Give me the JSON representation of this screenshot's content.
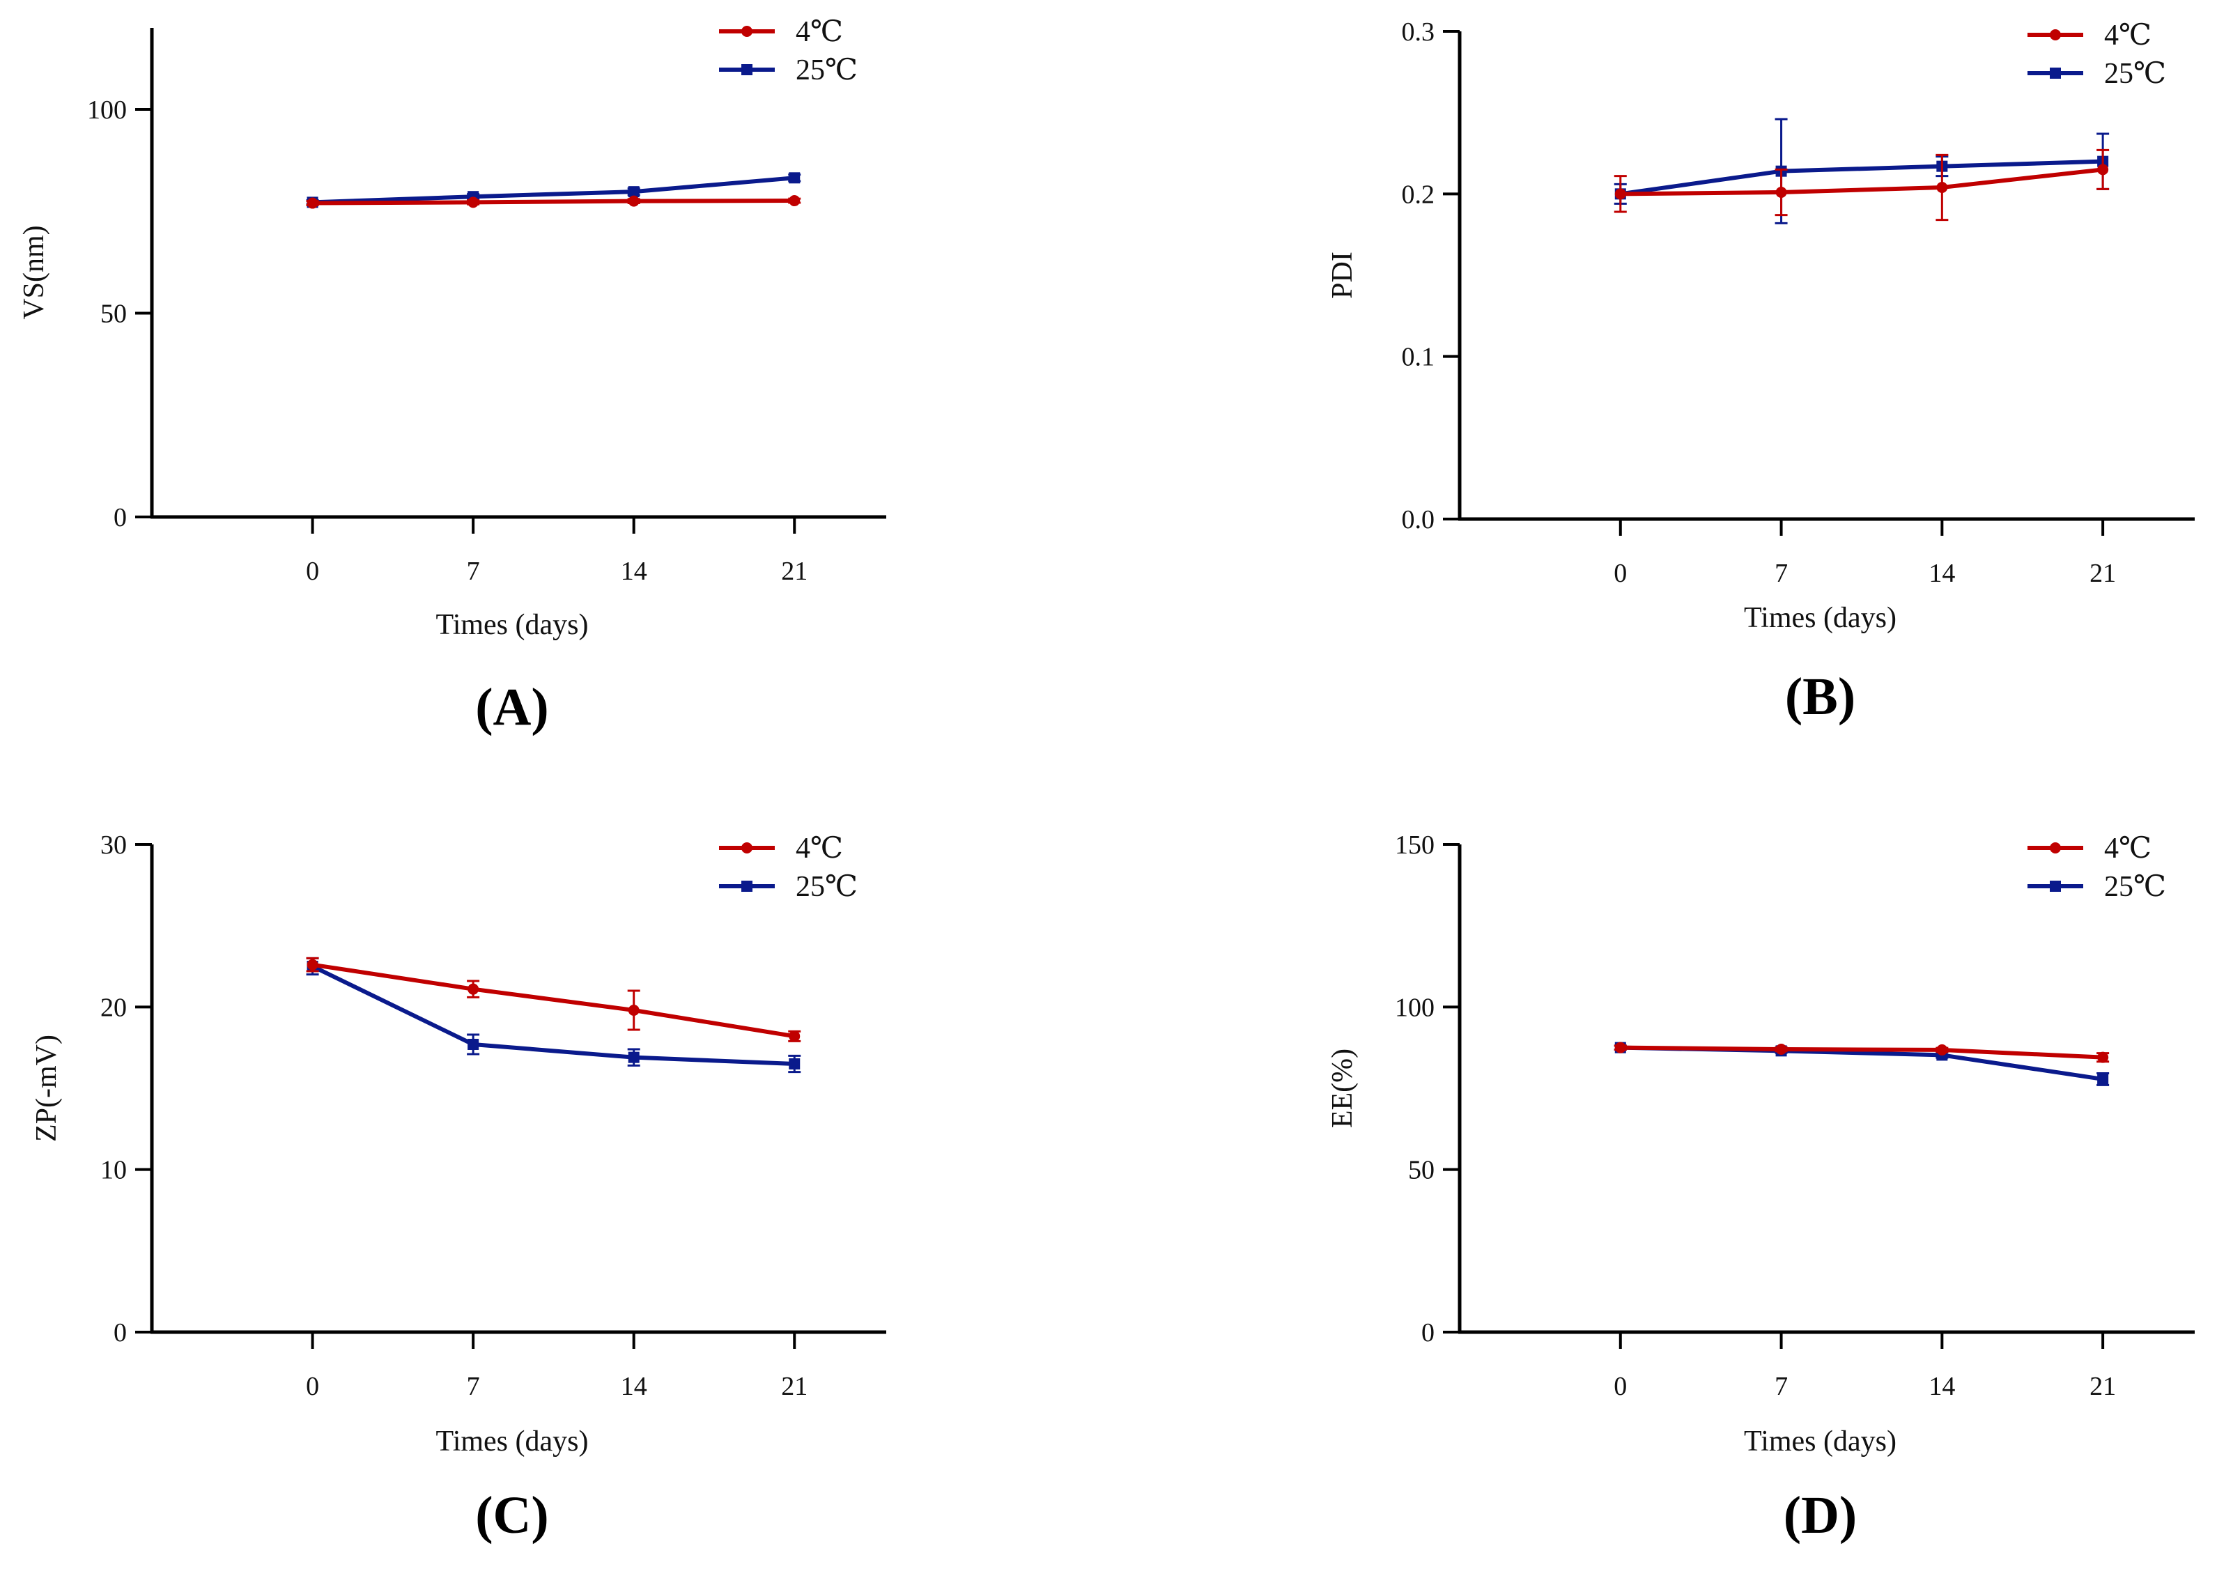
{
  "figure": {
    "series_styles": [
      {
        "name": "4℃",
        "color": "#c00000",
        "marker": "circle"
      },
      {
        "name": "25℃",
        "color": "#0a1a8c",
        "marker": "square"
      }
    ]
  },
  "chart_data": [
    {
      "type": "line",
      "panel": "A",
      "label": "(A)",
      "ylabel": "VS(nm)",
      "xlabel": "Times (days)",
      "x": [
        0,
        7,
        14,
        21
      ],
      "xlim": [
        -7,
        25
      ],
      "ylim": [
        0,
        120
      ],
      "yticks": [
        0,
        50,
        100
      ],
      "ytick_labels": [
        "0",
        "50",
        "100"
      ],
      "series": [
        {
          "name": "4℃",
          "values": [
            77,
            77.2,
            77.5,
            77.6
          ],
          "errors": [
            0.5,
            0.5,
            0.5,
            0.5
          ]
        },
        {
          "name": "25℃",
          "values": [
            77.2,
            78.6,
            79.8,
            83.2
          ],
          "errors": [
            0.5,
            0.6,
            0.8,
            0.8
          ]
        }
      ]
    },
    {
      "type": "line",
      "panel": "B",
      "label": "(B)",
      "ylabel": "PDI",
      "xlabel": "Times (days)",
      "x": [
        0,
        7,
        14,
        21
      ],
      "xlim": [
        -7,
        25
      ],
      "ylim": [
        0,
        0.3
      ],
      "yticks": [
        0,
        0.1,
        0.2,
        0.3
      ],
      "ytick_labels": [
        "0.0",
        "0.1",
        "0.2",
        "0.3"
      ],
      "series": [
        {
          "name": "4℃",
          "values": [
            0.2,
            0.201,
            0.204,
            0.215
          ],
          "errors": [
            0.011,
            0.014,
            0.02,
            0.012
          ]
        },
        {
          "name": "25℃",
          "values": [
            0.2,
            0.214,
            0.217,
            0.22
          ],
          "errors": [
            0.006,
            0.032,
            0.006,
            0.017
          ]
        }
      ]
    },
    {
      "type": "line",
      "panel": "C",
      "label": "(C)",
      "ylabel": "ZP(-mV)",
      "xlabel": "Times (days)",
      "x": [
        0,
        7,
        14,
        21
      ],
      "xlim": [
        -7,
        25
      ],
      "ylim": [
        0,
        30
      ],
      "yticks": [
        0,
        10,
        20,
        30
      ],
      "ytick_labels": [
        "0",
        "10",
        "20",
        "30"
      ],
      "series": [
        {
          "name": "4℃",
          "values": [
            22.6,
            21.1,
            19.8,
            18.2
          ],
          "errors": [
            0.4,
            0.5,
            1.2,
            0.3
          ]
        },
        {
          "name": "25℃",
          "values": [
            22.5,
            17.7,
            16.9,
            16.5
          ],
          "errors": [
            0.5,
            0.6,
            0.5,
            0.5
          ]
        }
      ]
    },
    {
      "type": "line",
      "panel": "D",
      "label": "(D)",
      "ylabel": "EE(%)",
      "xlabel": "Times (days)",
      "x": [
        0,
        7,
        14,
        21
      ],
      "xlim": [
        -7,
        25
      ],
      "ylim": [
        0,
        150
      ],
      "yticks": [
        0,
        50,
        100,
        150
      ],
      "ytick_labels": [
        "0",
        "50",
        "100",
        "150"
      ],
      "series": [
        {
          "name": "4℃",
          "values": [
            87.5,
            87,
            86.8,
            84.5
          ],
          "errors": [
            0.6,
            0.6,
            0.6,
            1.3
          ]
        },
        {
          "name": "25℃",
          "values": [
            87.5,
            86.5,
            85.2,
            77.8
          ],
          "errors": [
            0.6,
            0.6,
            0.8,
            1.8
          ]
        }
      ]
    }
  ]
}
